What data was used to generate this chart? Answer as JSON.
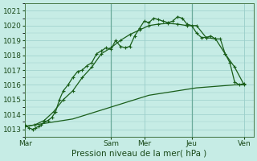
{
  "xlabel": "Pression niveau de la mer( hPa )",
  "ylim": [
    1012.5,
    1021.5
  ],
  "yticks": [
    1013,
    1014,
    1015,
    1016,
    1017,
    1018,
    1019,
    1020,
    1021
  ],
  "background_color": "#c6ece5",
  "grid_color": "#9bcfca",
  "grid_color_dark": "#6aaa9a",
  "line_color": "#1a5e1a",
  "day_labels": [
    "Mar",
    "Sam",
    "Mer",
    "Jeu",
    "Ven"
  ],
  "day_positions": [
    0,
    9,
    12.5,
    17.5,
    23
  ],
  "xlim": [
    0,
    24
  ],
  "s1_x": [
    0,
    0.4,
    0.8,
    1.1,
    1.4,
    1.7,
    2.0,
    2.4,
    2.8,
    3.2,
    3.6,
    4.0,
    4.5,
    5.0,
    5.5,
    6.0,
    6.5,
    7.0,
    7.5,
    8.0,
    8.5,
    9.0,
    9.5,
    10.0,
    10.5,
    11.0,
    11.5,
    12.0,
    12.5,
    13.0,
    13.5,
    14.0,
    14.5,
    15.0,
    15.5,
    16.0,
    16.5,
    17.0,
    17.5,
    18.0,
    18.5,
    19.0,
    19.5,
    20.0,
    20.5,
    21.0,
    21.5,
    22.0,
    22.5,
    23.0
  ],
  "s1_y": [
    1013.3,
    1013.1,
    1013.0,
    1013.1,
    1013.2,
    1013.3,
    1013.5,
    1013.6,
    1013.8,
    1014.2,
    1015.0,
    1015.6,
    1016.0,
    1016.5,
    1016.9,
    1017.0,
    1017.3,
    1017.5,
    1018.1,
    1018.3,
    1018.5,
    1018.4,
    1019.0,
    1018.6,
    1018.5,
    1018.6,
    1019.3,
    1019.8,
    1020.3,
    1020.2,
    1020.5,
    1020.4,
    1020.3,
    1020.2,
    1020.3,
    1020.6,
    1020.5,
    1020.1,
    1020.0,
    1019.5,
    1019.2,
    1019.2,
    1019.3,
    1019.1,
    1019.1,
    1018.1,
    1017.5,
    1016.2,
    1016.0,
    1016.1
  ],
  "s2_x": [
    0,
    1,
    2,
    3,
    4,
    5,
    6,
    7,
    8,
    9,
    10,
    11,
    12,
    13,
    14,
    15,
    16,
    17,
    18,
    19,
    20,
    21,
    22,
    23
  ],
  "s2_y": [
    1013.2,
    1013.3,
    1013.4,
    1013.5,
    1013.6,
    1013.7,
    1013.9,
    1014.1,
    1014.3,
    1014.5,
    1014.7,
    1014.9,
    1015.1,
    1015.3,
    1015.4,
    1015.5,
    1015.6,
    1015.7,
    1015.8,
    1015.85,
    1015.9,
    1015.95,
    1016.0,
    1016.0
  ],
  "s3_x": [
    0,
    1,
    2,
    3,
    4,
    5,
    6,
    7,
    8,
    9,
    10,
    11,
    12,
    13,
    14,
    15,
    16,
    17,
    18,
    19,
    20,
    21,
    22,
    23
  ],
  "s3_y": [
    1013.2,
    1013.3,
    1013.6,
    1014.2,
    1015.0,
    1015.6,
    1016.5,
    1017.2,
    1018.1,
    1018.5,
    1019.0,
    1019.4,
    1019.7,
    1020.0,
    1020.1,
    1020.15,
    1020.1,
    1020.0,
    1020.0,
    1019.2,
    1019.1,
    1018.1,
    1017.2,
    1016.0
  ]
}
